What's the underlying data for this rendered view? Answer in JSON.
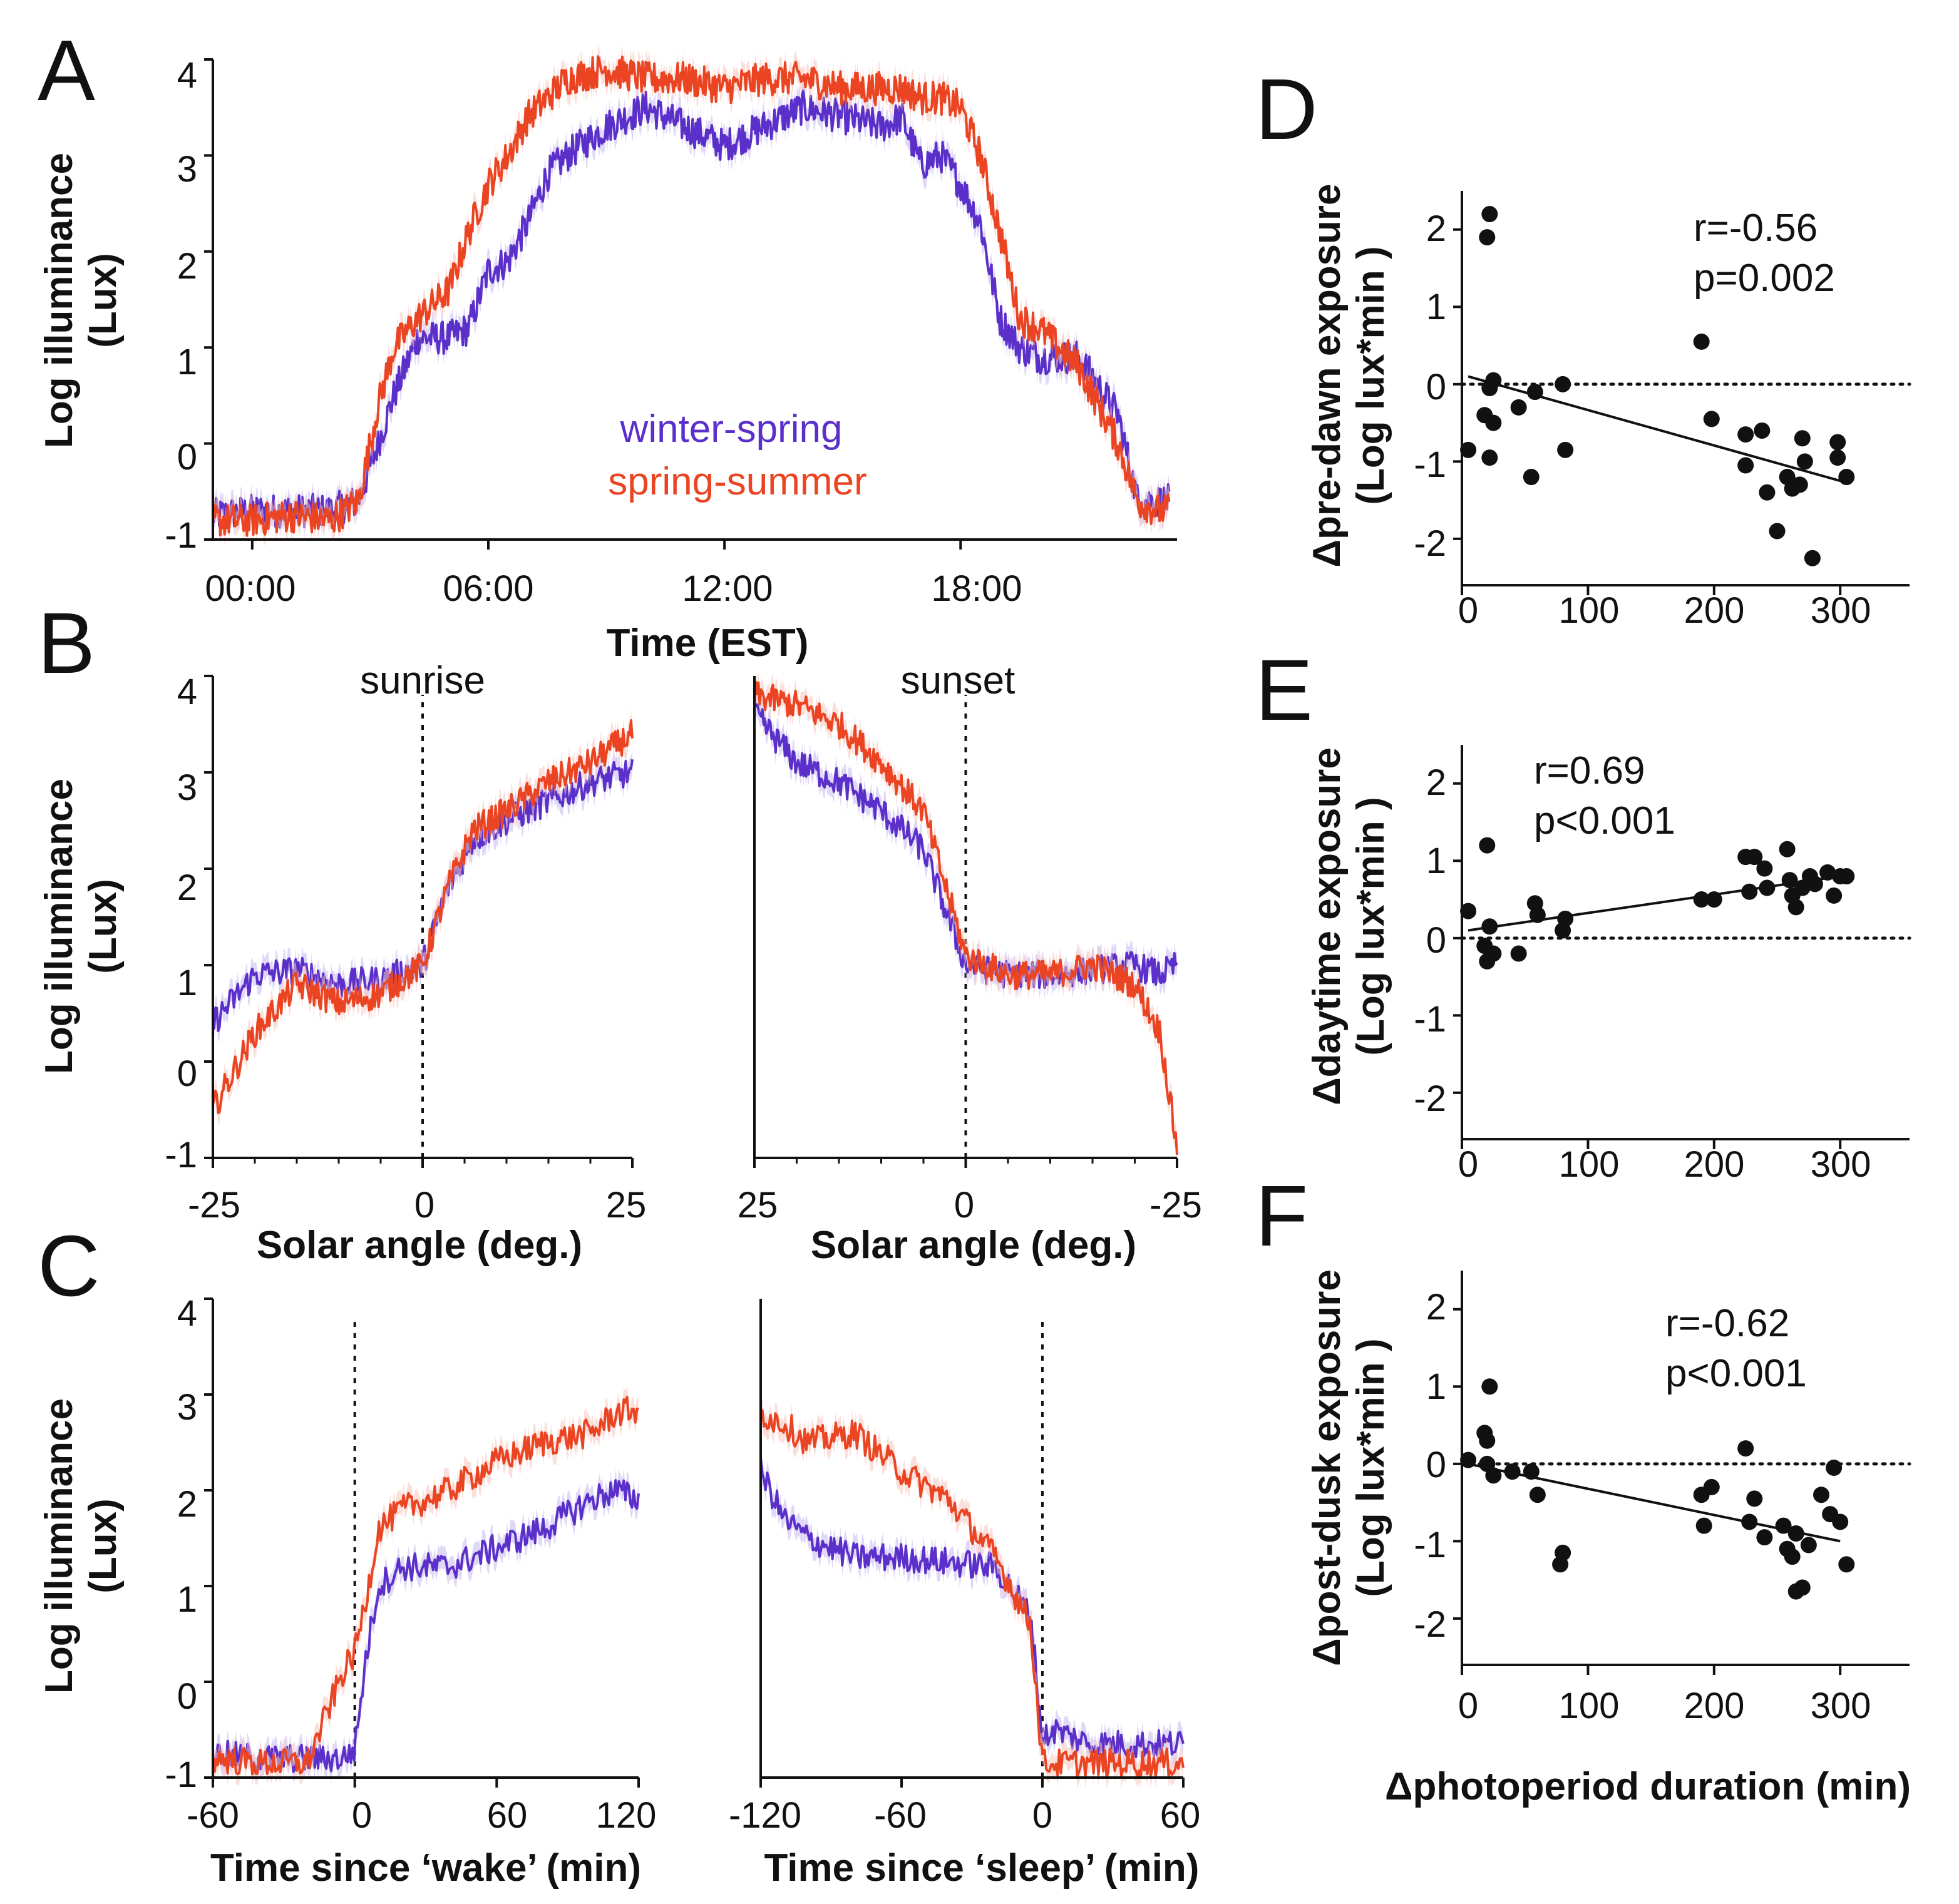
{
  "colors": {
    "winter": "#5b2fc9",
    "summer": "#ea4422",
    "winterBand": "#c4b8f0",
    "summerBand": "#f7c4bb",
    "ink": "#111111"
  },
  "legend": {
    "winter": "winter-spring",
    "summer": "spring-summer"
  },
  "panels": {
    "A": {
      "letter": "A",
      "ylabel1": "Log illuminance",
      "ylabel2": "(Lux)",
      "xlabel": "Time (EST)",
      "yticks": [
        "4",
        "3",
        "2",
        "1",
        "0",
        "-1"
      ],
      "xticks": [
        "00:00",
        "06:00",
        "12:00",
        "18:00"
      ]
    },
    "B": {
      "letter": "B",
      "ylabel1": "Log illuminance",
      "ylabel2": "(Lux)",
      "yticks": [
        "4",
        "3",
        "2",
        "1",
        "0",
        "-1"
      ],
      "left": {
        "annot": "sunrise",
        "xlabel": "Solar angle (deg.)",
        "xticks": [
          "-25",
          "0",
          "25"
        ]
      },
      "right": {
        "annot": "sunset",
        "xlabel": "Solar angle (deg.)",
        "xticks": [
          "25",
          "0",
          "-25"
        ]
      }
    },
    "C": {
      "letter": "C",
      "ylabel1": "Log illuminance",
      "ylabel2": "(Lux)",
      "yticks": [
        "4",
        "3",
        "2",
        "1",
        "0",
        "-1"
      ],
      "left": {
        "xlabel": "Time since ‘wake’ (min)",
        "xticks": [
          "-60",
          "0",
          "60",
          "120"
        ]
      },
      "right": {
        "xlabel": "Time since ‘sleep’ (min)",
        "xticks": [
          "-120",
          "-60",
          "0",
          "60"
        ]
      }
    },
    "D": {
      "letter": "D",
      "ylabel1": "Δpre-dawn exposure",
      "ylabel2": "(Log lux*min )",
      "r": "r=-0.56",
      "p": "p=0.002",
      "yticks": [
        "2",
        "1",
        "0",
        "-1",
        "-2"
      ],
      "xticks": [
        "0",
        "100",
        "200",
        "300"
      ]
    },
    "E": {
      "letter": "E",
      "ylabel1": "Δdaytime exposure",
      "ylabel2": "(Log lux*min )",
      "r": "r=0.69",
      "p": "p<0.001",
      "yticks": [
        "2",
        "1",
        "0",
        "-1",
        "-2"
      ],
      "xticks": [
        "0",
        "100",
        "200",
        "300"
      ]
    },
    "F": {
      "letter": "F",
      "ylabel1": "Δpost-dusk exposure",
      "ylabel2": "(Log lux*min )",
      "r": "r=-0.62",
      "p": "p<0.001",
      "yticks": [
        "2",
        "1",
        "0",
        "-1",
        "-2"
      ],
      "xticks": [
        "0",
        "100",
        "200",
        "300"
      ],
      "xlabel": "Δphotoperiod duration (min)"
    }
  },
  "chart_data": [
    {
      "id": "A",
      "type": "line",
      "xlabel": "Time (EST)",
      "ylabel": "Log illuminance (Lux)",
      "xunit": "hours",
      "xlim": [
        -1,
        23.5
      ],
      "ylim": [
        -1,
        4
      ],
      "series": [
        {
          "name": "winter-spring",
          "x": [
            -1,
            0,
            1,
            2,
            2.7,
            3.2,
            3.6,
            4.2,
            5,
            5.5,
            6,
            6.5,
            7,
            7.5,
            8,
            9,
            10,
            11,
            12,
            13,
            14,
            15,
            16,
            16.5,
            17,
            17.5,
            18,
            18.5,
            19,
            19.5,
            20,
            21,
            22,
            22.5,
            23,
            23.3
          ],
          "y": [
            -0.75,
            -0.7,
            -0.7,
            -0.7,
            -0.6,
            0.0,
            0.5,
            1.1,
            1.1,
            1.2,
            1.8,
            1.9,
            2.3,
            2.8,
            3.0,
            3.3,
            3.5,
            3.3,
            3.1,
            3.3,
            3.5,
            3.4,
            3.3,
            3.4,
            2.9,
            3.0,
            2.7,
            2.3,
            1.3,
            1.0,
            0.9,
            0.9,
            0.3,
            -0.6,
            -0.6,
            -0.6
          ]
        },
        {
          "name": "spring-summer",
          "x": [
            -1,
            0,
            1,
            2,
            2.7,
            3.2,
            3.6,
            4.2,
            5,
            5.5,
            6,
            6.5,
            7,
            7.5,
            8,
            9,
            10,
            11,
            12,
            13,
            14,
            15,
            16,
            16.5,
            17,
            17.5,
            18,
            18.5,
            19,
            19.5,
            20,
            21,
            22,
            22.5,
            23,
            23.3
          ],
          "y": [
            -0.8,
            -0.8,
            -0.75,
            -0.8,
            -0.6,
            0.4,
            1.0,
            1.3,
            1.6,
            2.2,
            2.7,
            3.0,
            3.4,
            3.6,
            3.8,
            3.9,
            3.8,
            3.8,
            3.7,
            3.8,
            3.8,
            3.7,
            3.7,
            3.7,
            3.6,
            3.6,
            3.5,
            3.0,
            2.2,
            1.3,
            1.2,
            0.8,
            0.0,
            -0.6,
            -0.7,
            -0.7
          ]
        }
      ]
    },
    {
      "id": "B-sunrise",
      "type": "line",
      "xlabel": "Solar angle (deg.)",
      "annotation": "sunrise",
      "xlim": [
        -25,
        25
      ],
      "ylim": [
        -1,
        4
      ],
      "series": [
        {
          "name": "winter-spring",
          "x": [
            -25,
            -20,
            -15,
            -10,
            -5,
            0,
            3,
            6,
            10,
            15,
            20,
            25
          ],
          "y": [
            0.4,
            0.9,
            0.95,
            0.8,
            0.85,
            1.0,
            1.8,
            2.3,
            2.5,
            2.7,
            2.9,
            3.0
          ]
        },
        {
          "name": "spring-summer",
          "x": [
            -25,
            -20,
            -15,
            -10,
            -5,
            0,
            3,
            6,
            10,
            15,
            20,
            25
          ],
          "y": [
            -0.5,
            0.3,
            0.8,
            0.6,
            0.7,
            1.0,
            1.8,
            2.4,
            2.6,
            2.9,
            3.1,
            3.4
          ]
        }
      ]
    },
    {
      "id": "B-sunset",
      "type": "line",
      "xlabel": "Solar angle (deg.)",
      "annotation": "sunset",
      "xlim": [
        25,
        -25
      ],
      "ylim": [
        -1,
        4
      ],
      "series": [
        {
          "name": "winter-spring",
          "x": [
            25,
            20,
            15,
            10,
            5,
            0,
            -5,
            -10,
            -15,
            -20,
            -23,
            -25
          ],
          "y": [
            3.6,
            3.1,
            2.9,
            2.6,
            2.2,
            1.0,
            0.9,
            0.9,
            0.95,
            1.0,
            0.9,
            1.0
          ]
        },
        {
          "name": "spring-summer",
          "x": [
            25,
            20,
            15,
            10,
            5,
            0,
            -5,
            -10,
            -15,
            -20,
            -23,
            -25
          ],
          "y": [
            3.8,
            3.7,
            3.5,
            3.1,
            2.6,
            1.1,
            0.9,
            0.9,
            1.0,
            0.8,
            0.3,
            -0.9
          ]
        }
      ]
    },
    {
      "id": "C-wake",
      "type": "line",
      "xlabel": "Time since ‘wake’ (min)",
      "xlim": [
        -60,
        120
      ],
      "ylim": [
        -1,
        4
      ],
      "series": [
        {
          "name": "winter-spring",
          "x": [
            -60,
            -40,
            -20,
            -5,
            0,
            5,
            10,
            20,
            40,
            60,
            80,
            100,
            110,
            120
          ],
          "y": [
            -0.75,
            -0.8,
            -0.8,
            -0.8,
            -0.7,
            0.3,
            1.0,
            1.2,
            1.2,
            1.4,
            1.6,
            1.9,
            2.0,
            1.9
          ]
        },
        {
          "name": "spring-summer",
          "x": [
            -60,
            -40,
            -20,
            -5,
            0,
            5,
            10,
            20,
            40,
            60,
            80,
            100,
            110,
            120
          ],
          "y": [
            -0.8,
            -0.85,
            -0.85,
            0.1,
            0.3,
            0.9,
            1.6,
            1.8,
            2.0,
            2.3,
            2.5,
            2.6,
            2.8,
            2.85
          ]
        }
      ]
    },
    {
      "id": "C-sleep",
      "type": "line",
      "xlabel": "Time since ‘sleep’ (min)",
      "xlim": [
        -120,
        60
      ],
      "ylim": [
        -1,
        4
      ],
      "series": [
        {
          "name": "winter-spring",
          "x": [
            -120,
            -110,
            -100,
            -80,
            -60,
            -40,
            -20,
            -5,
            0,
            5,
            20,
            40,
            60
          ],
          "y": [
            2.2,
            1.7,
            1.5,
            1.3,
            1.3,
            1.25,
            1.2,
            0.7,
            -0.6,
            -0.5,
            -0.65,
            -0.65,
            -0.65
          ]
        },
        {
          "name": "spring-summer",
          "x": [
            -120,
            -110,
            -100,
            -80,
            -60,
            -40,
            -20,
            -5,
            0,
            5,
            20,
            40,
            60
          ],
          "y": [
            2.8,
            2.7,
            2.5,
            2.6,
            2.2,
            1.9,
            1.3,
            0.6,
            -0.85,
            -0.85,
            -0.85,
            -0.85,
            -0.85
          ]
        }
      ]
    },
    {
      "id": "D",
      "type": "scatter",
      "xlabel": "Δphotoperiod duration (min)",
      "ylabel": "Δpre-dawn exposure (Log lux*min )",
      "xlim": [
        0,
        355
      ],
      "ylim": [
        -2.6,
        2.5
      ],
      "r": "r=-0.56",
      "p": "p=0.002",
      "fit": [
        [
          5,
          0.1
        ],
        [
          300,
          -1.25
        ]
      ],
      "points": [
        [
          22,
          2.2
        ],
        [
          20,
          1.9
        ],
        [
          25,
          0.05
        ],
        [
          22,
          -0.05
        ],
        [
          18,
          -0.4
        ],
        [
          25,
          -0.5
        ],
        [
          5,
          -0.85
        ],
        [
          22,
          -0.95
        ],
        [
          45,
          -0.3
        ],
        [
          58,
          -0.1
        ],
        [
          55,
          -1.2
        ],
        [
          80,
          0.0
        ],
        [
          82,
          -0.85
        ],
        [
          190,
          0.55
        ],
        [
          198,
          -0.45
        ],
        [
          225,
          -0.65
        ],
        [
          238,
          -0.6
        ],
        [
          225,
          -1.05
        ],
        [
          242,
          -1.4
        ],
        [
          258,
          -1.2
        ],
        [
          262,
          -1.35
        ],
        [
          268,
          -1.3
        ],
        [
          272,
          -1.0
        ],
        [
          270,
          -0.7
        ],
        [
          250,
          -1.9
        ],
        [
          278,
          -2.25
        ],
        [
          298,
          -0.75
        ],
        [
          298,
          -0.95
        ],
        [
          305,
          -1.2
        ]
      ]
    },
    {
      "id": "E",
      "type": "scatter",
      "xlabel": "Δphotoperiod duration (min)",
      "ylabel": "Δdaytime exposure (Log lux*min )",
      "xlim": [
        0,
        355
      ],
      "ylim": [
        -2.6,
        2.5
      ],
      "r": "r=0.69",
      "p": "p<0.001",
      "fit": [
        [
          5,
          0.1
        ],
        [
          300,
          0.8
        ]
      ],
      "points": [
        [
          5,
          0.35
        ],
        [
          20,
          1.2
        ],
        [
          22,
          0.15
        ],
        [
          18,
          -0.1
        ],
        [
          25,
          -0.2
        ],
        [
          20,
          -0.3
        ],
        [
          45,
          -0.2
        ],
        [
          58,
          0.45
        ],
        [
          60,
          0.3
        ],
        [
          80,
          0.1
        ],
        [
          82,
          0.25
        ],
        [
          190,
          0.5
        ],
        [
          200,
          0.5
        ],
        [
          225,
          1.05
        ],
        [
          232,
          1.05
        ],
        [
          228,
          0.6
        ],
        [
          240,
          0.9
        ],
        [
          242,
          0.65
        ],
        [
          258,
          1.15
        ],
        [
          260,
          0.75
        ],
        [
          262,
          0.55
        ],
        [
          265,
          0.4
        ],
        [
          270,
          0.65
        ],
        [
          276,
          0.8
        ],
        [
          280,
          0.7
        ],
        [
          290,
          0.85
        ],
        [
          295,
          0.55
        ],
        [
          300,
          0.8
        ],
        [
          305,
          0.8
        ]
      ]
    },
    {
      "id": "F",
      "type": "scatter",
      "xlabel": "Δphotoperiod duration (min)",
      "ylabel": "Δpost-dusk exposure (Log lux*min )",
      "xlim": [
        0,
        355
      ],
      "ylim": [
        -2.6,
        2.5
      ],
      "r": "r=-0.62",
      "p": "p<0.001",
      "fit": [
        [
          5,
          0.0
        ],
        [
          300,
          -1.0
        ]
      ],
      "points": [
        [
          22,
          1.0
        ],
        [
          18,
          0.4
        ],
        [
          20,
          0.3
        ],
        [
          5,
          0.05
        ],
        [
          20,
          0.0
        ],
        [
          25,
          -0.15
        ],
        [
          40,
          -0.1
        ],
        [
          55,
          -0.1
        ],
        [
          60,
          -0.4
        ],
        [
          80,
          -1.15
        ],
        [
          78,
          -1.3
        ],
        [
          190,
          -0.4
        ],
        [
          198,
          -0.3
        ],
        [
          192,
          -0.8
        ],
        [
          225,
          0.2
        ],
        [
          232,
          -0.45
        ],
        [
          228,
          -0.75
        ],
        [
          240,
          -0.95
        ],
        [
          255,
          -0.8
        ],
        [
          258,
          -1.1
        ],
        [
          262,
          -1.2
        ],
        [
          265,
          -0.9
        ],
        [
          265,
          -1.65
        ],
        [
          270,
          -1.6
        ],
        [
          275,
          -1.05
        ],
        [
          285,
          -0.4
        ],
        [
          295,
          -0.05
        ],
        [
          292,
          -0.65
        ],
        [
          300,
          -0.75
        ],
        [
          305,
          -1.3
        ]
      ]
    }
  ]
}
